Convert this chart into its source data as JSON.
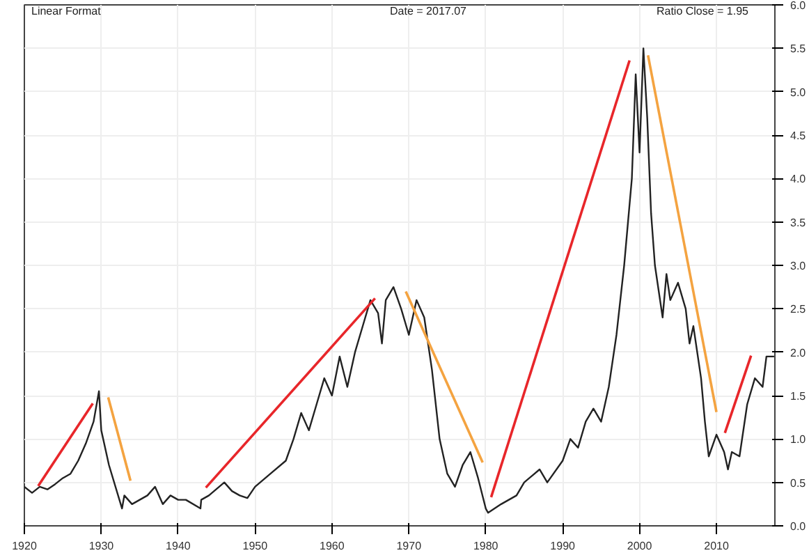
{
  "chart_data": {
    "type": "line",
    "annotations": [
      "Linear Format",
      "Date = 2017.07",
      "Ratio Close = 1.95"
    ],
    "xlim": [
      1920,
      2017.6
    ],
    "ylim": [
      0,
      6
    ],
    "xticks": [
      1920,
      1930,
      1940,
      1950,
      1960,
      1970,
      1980,
      1990,
      2000,
      2010
    ],
    "yticks": [
      {
        "value": 0,
        "label": "0.0"
      },
      {
        "value": 0.5,
        "label": "0.5"
      },
      {
        "value": 1,
        "label": "1.0"
      },
      {
        "value": 1.5,
        "label": "1.5"
      },
      {
        "value": 2,
        "label": "2.0"
      },
      {
        "value": 2.5,
        "label": "2.5"
      },
      {
        "value": 3,
        "label": "3.0"
      },
      {
        "value": 3.5,
        "label": "3.5"
      },
      {
        "value": 4,
        "label": "4.0"
      },
      {
        "value": 4.5,
        "label": "4.5"
      },
      {
        "value": 5,
        "label": "5.0"
      },
      {
        "value": 5.5,
        "label": "5.5"
      },
      {
        "value": 6,
        "label": "6.0"
      }
    ],
    "grid": true,
    "line_style": "solid",
    "series": [
      {
        "color": "#222222",
        "x": [
          1920,
          1921,
          1922,
          1923,
          1924,
          1925,
          1926,
          1927,
          1928,
          1929,
          1929.7,
          1930,
          1931,
          1932.7,
          1933,
          1934,
          1935,
          1936,
          1937,
          1938,
          1939,
          1940,
          1941,
          1942.9,
          1943,
          1944,
          1946,
          1947,
          1948,
          1949,
          1950,
          1952,
          1954,
          1955,
          1956,
          1957,
          1958,
          1959,
          1960,
          1961,
          1962,
          1963,
          1964,
          1965,
          1966,
          1966.5,
          1967,
          1968,
          1969,
          1970,
          1971,
          1972,
          1973,
          1974,
          1975,
          1976,
          1977,
          1978,
          1979,
          1980,
          1980.3,
          1982,
          1984,
          1985,
          1987,
          1988,
          1990,
          1991,
          1992,
          1993,
          1994,
          1995,
          1996,
          1997,
          1998,
          1999,
          1999.5,
          2000,
          2000.5,
          2001,
          2001.5,
          2002,
          2003,
          2003.5,
          2004,
          2005,
          2006,
          2006.5,
          2007,
          2008,
          2008.5,
          2009,
          2010,
          2011,
          2011.5,
          2012,
          2013,
          2014,
          2015,
          2016,
          2016.5,
          2017.5
        ],
        "values": [
          0.45,
          0.38,
          0.45,
          0.42,
          0.48,
          0.55,
          0.6,
          0.75,
          0.95,
          1.2,
          1.55,
          1.1,
          0.7,
          0.2,
          0.35,
          0.25,
          0.3,
          0.35,
          0.45,
          0.25,
          0.35,
          0.3,
          0.3,
          0.2,
          0.3,
          0.35,
          0.5,
          0.4,
          0.35,
          0.32,
          0.45,
          0.6,
          0.75,
          1.0,
          1.3,
          1.1,
          1.4,
          1.7,
          1.5,
          1.95,
          1.6,
          2.0,
          2.3,
          2.6,
          2.45,
          2.1,
          2.6,
          2.75,
          2.5,
          2.2,
          2.6,
          2.4,
          1.8,
          1.0,
          0.6,
          0.45,
          0.7,
          0.85,
          0.55,
          0.2,
          0.15,
          0.25,
          0.35,
          0.5,
          0.65,
          0.5,
          0.75,
          1.0,
          0.9,
          1.2,
          1.35,
          1.2,
          1.6,
          2.2,
          3.0,
          4.0,
          5.2,
          4.3,
          5.5,
          4.7,
          3.6,
          3.0,
          2.4,
          2.9,
          2.6,
          2.8,
          2.5,
          2.1,
          2.3,
          1.7,
          1.2,
          0.8,
          1.05,
          0.85,
          0.65,
          0.85,
          0.8,
          1.4,
          1.7,
          1.6,
          1.95,
          1.95
        ]
      },
      {
        "color": "#e8262a",
        "x": [
          1921.8,
          1928.9
        ],
        "values": [
          0.46,
          1.41
        ]
      },
      {
        "color": "#f4a340",
        "x": [
          1930.9,
          1933.8
        ],
        "values": [
          1.48,
          0.52
        ]
      },
      {
        "color": "#e8262a",
        "x": [
          1943.6,
          1965.6
        ],
        "values": [
          0.44,
          2.62
        ]
      },
      {
        "color": "#f4a340",
        "x": [
          1969.6,
          1979.6
        ],
        "values": [
          2.7,
          0.73
        ]
      },
      {
        "color": "#e8262a",
        "x": [
          1980.7,
          1998.7
        ],
        "values": [
          0.33,
          5.36
        ]
      },
      {
        "color": "#f4a340",
        "x": [
          2001.1,
          2010
        ],
        "values": [
          5.42,
          1.31
        ]
      },
      {
        "color": "#e8262a",
        "x": [
          2011.1,
          2014.5
        ],
        "values": [
          1.07,
          1.96
        ]
      }
    ]
  }
}
